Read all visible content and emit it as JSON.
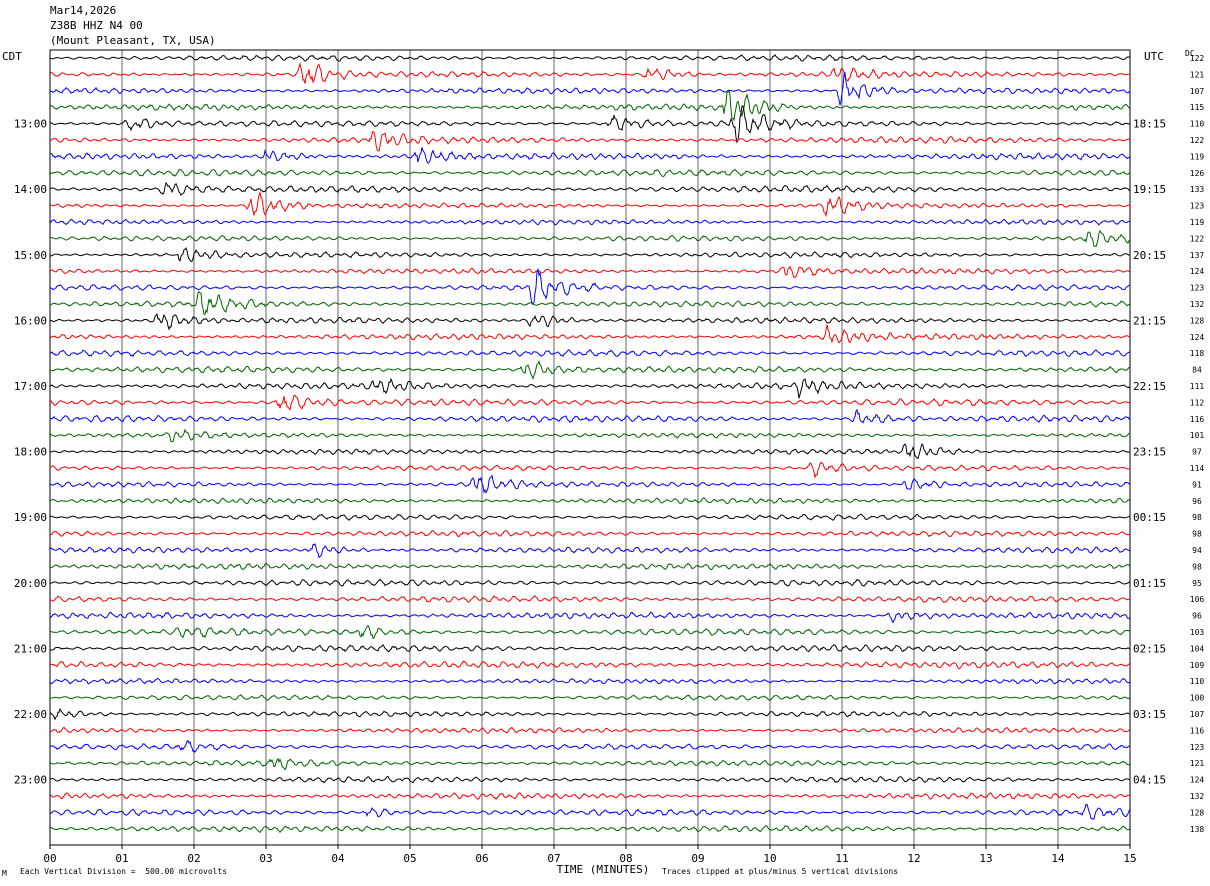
{
  "header": {
    "date": "Mar14,2026",
    "station": "Z38B HHZ N4 00",
    "location": "(Mount Pleasant, TX, USA)"
  },
  "left_tz": "CDT",
  "right_tz": "UTC",
  "dc_label": "DC",
  "footer": {
    "scale": "Each Vertical Division =  500.00 microvolts",
    "clip": "Traces clipped at plus/minus 5 vertical divisions",
    "corner": "M"
  },
  "colors": {
    "trace_cycle": [
      "#000000",
      "#ff0000",
      "#0000ff",
      "#006400"
    ],
    "grid": "#000000"
  },
  "chart_data": {
    "type": "line",
    "title": "",
    "xlabel": "TIME (MINUTES)",
    "x_ticks": [
      "00",
      "01",
      "02",
      "03",
      "04",
      "05",
      "06",
      "07",
      "08",
      "09",
      "10",
      "11",
      "12",
      "13",
      "14",
      "15"
    ],
    "xlim": [
      0,
      15
    ],
    "left_hour_labels": [
      "13:00",
      "14:00",
      "15:00",
      "16:00",
      "17:00",
      "18:00",
      "19:00",
      "20:00",
      "21:00",
      "22:00",
      "23:00"
    ],
    "right_hour_labels": [
      "18:15",
      "19:15",
      "20:15",
      "21:15",
      "22:15",
      "23:15",
      "00:15",
      "01:15",
      "02:15",
      "03:15",
      "04:15"
    ],
    "trace_count": 48,
    "dc_offsets": [
      122,
      121,
      107,
      115,
      110,
      122,
      119,
      126,
      133,
      123,
      119,
      122,
      137,
      124,
      123,
      132,
      128,
      124,
      118,
      84,
      111,
      112,
      116,
      101,
      97,
      114,
      91,
      96,
      98,
      98,
      94,
      98,
      95,
      106,
      96,
      103,
      104,
      109,
      110,
      100,
      107,
      116,
      123,
      121,
      124,
      132,
      128,
      138
    ],
    "events": [
      {
        "trace": 1,
        "minute": 3.5,
        "strength": 2.5
      },
      {
        "trace": 1,
        "minute": 8.3,
        "strength": 1.5
      },
      {
        "trace": 1,
        "minute": 10.9,
        "strength": 1.5
      },
      {
        "trace": 2,
        "minute": 11.0,
        "strength": 3.0
      },
      {
        "trace": 3,
        "minute": 9.4,
        "strength": 3.5
      },
      {
        "trace": 4,
        "minute": 9.5,
        "strength": 3.5
      },
      {
        "trace": 4,
        "minute": 7.8,
        "strength": 1.5
      },
      {
        "trace": 4,
        "minute": 1.1,
        "strength": 1.2
      },
      {
        "trace": 5,
        "minute": 4.5,
        "strength": 1.5
      },
      {
        "trace": 6,
        "minute": 5.1,
        "strength": 1.5
      },
      {
        "trace": 6,
        "minute": 3.0,
        "strength": 1.2
      },
      {
        "trace": 8,
        "minute": 1.6,
        "strength": 1.2
      },
      {
        "trace": 9,
        "minute": 2.8,
        "strength": 3.5
      },
      {
        "trace": 9,
        "minute": 10.8,
        "strength": 2.5
      },
      {
        "trace": 11,
        "minute": 14.4,
        "strength": 2.0
      },
      {
        "trace": 12,
        "minute": 1.8,
        "strength": 1.5
      },
      {
        "trace": 13,
        "minute": 10.2,
        "strength": 1.5
      },
      {
        "trace": 14,
        "minute": 6.7,
        "strength": 3.5
      },
      {
        "trace": 15,
        "minute": 2.1,
        "strength": 3.0
      },
      {
        "trace": 16,
        "minute": 1.5,
        "strength": 2.0
      },
      {
        "trace": 16,
        "minute": 6.7,
        "strength": 1.5
      },
      {
        "trace": 17,
        "minute": 10.8,
        "strength": 2.0
      },
      {
        "trace": 19,
        "minute": 6.6,
        "strength": 1.8
      },
      {
        "trace": 20,
        "minute": 4.5,
        "strength": 1.2
      },
      {
        "trace": 20,
        "minute": 10.4,
        "strength": 1.2
      },
      {
        "trace": 21,
        "minute": 3.2,
        "strength": 2.0
      },
      {
        "trace": 22,
        "minute": 11.2,
        "strength": 1.2
      },
      {
        "trace": 23,
        "minute": 1.7,
        "strength": 1.2
      },
      {
        "trace": 24,
        "minute": 11.9,
        "strength": 2.0
      },
      {
        "trace": 25,
        "minute": 10.6,
        "strength": 1.5
      },
      {
        "trace": 26,
        "minute": 5.9,
        "strength": 2.5
      },
      {
        "trace": 26,
        "minute": 11.9,
        "strength": 1.2
      },
      {
        "trace": 30,
        "minute": 3.6,
        "strength": 1.5
      },
      {
        "trace": 34,
        "minute": 11.7,
        "strength": 1.0
      },
      {
        "trace": 35,
        "minute": 1.8,
        "strength": 1.0
      },
      {
        "trace": 35,
        "minute": 4.3,
        "strength": 1.0
      },
      {
        "trace": 40,
        "minute": 0.1,
        "strength": 1.0
      },
      {
        "trace": 42,
        "minute": 1.8,
        "strength": 1.0
      },
      {
        "trace": 43,
        "minute": 3.1,
        "strength": 1.0
      },
      {
        "trace": 46,
        "minute": 4.4,
        "strength": 1.0
      },
      {
        "trace": 46,
        "minute": 14.4,
        "strength": 1.0
      }
    ]
  }
}
